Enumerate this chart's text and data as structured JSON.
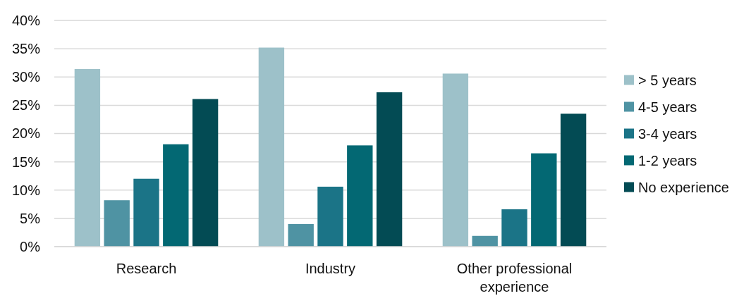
{
  "chart_data": {
    "type": "bar",
    "categories": [
      "Research",
      "Industry",
      "Other professional experience"
    ],
    "series": [
      {
        "name": "> 5 years",
        "color": "#9dc1c9",
        "values": [
          31.4,
          35.2,
          30.6
        ]
      },
      {
        "name": "4-5 years",
        "color": "#4f93a3",
        "values": [
          8.2,
          4.0,
          1.9
        ]
      },
      {
        "name": "3-4 years",
        "color": "#1b7487",
        "values": [
          12.0,
          10.6,
          6.6
        ]
      },
      {
        "name": "1-2 years",
        "color": "#036873",
        "values": [
          18.1,
          17.9,
          16.5
        ]
      },
      {
        "name": "No experience",
        "color": "#034b54",
        "values": [
          26.1,
          27.3,
          23.5
        ]
      }
    ],
    "ylim": [
      0,
      40
    ],
    "yticks": [
      {
        "value": 0,
        "label": "0%"
      },
      {
        "value": 5,
        "label": "5%"
      },
      {
        "value": 10,
        "label": "10%"
      },
      {
        "value": 15,
        "label": "15%"
      },
      {
        "value": 20,
        "label": "20%"
      },
      {
        "value": 25,
        "label": "25%"
      },
      {
        "value": 30,
        "label": "30%"
      },
      {
        "value": 35,
        "label": "35%"
      },
      {
        "value": 40,
        "label": "40%"
      }
    ],
    "grid": "y",
    "legend": "right"
  }
}
